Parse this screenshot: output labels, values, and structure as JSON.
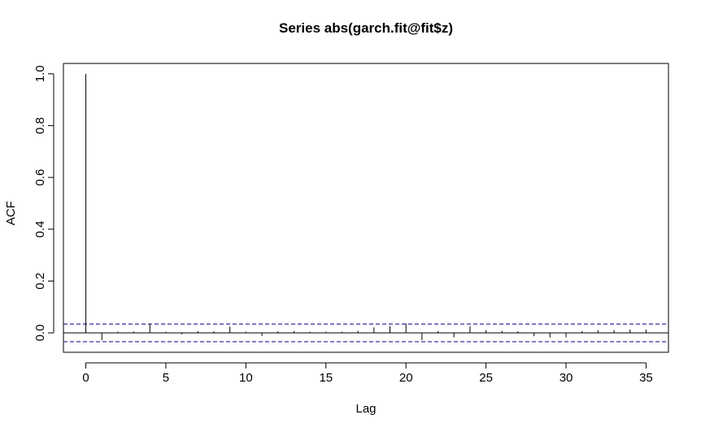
{
  "chart_data": {
    "type": "bar",
    "title": "Series  abs(garch.fit@fit$z)",
    "xlabel": "Lag",
    "ylabel": "ACF",
    "xlim": [
      -1.4,
      36.4
    ],
    "ylim": [
      -0.075,
      1.04
    ],
    "x_ticks": [
      "0",
      "5",
      "10",
      "15",
      "20",
      "25",
      "30",
      "35"
    ],
    "y_ticks": [
      "0.0",
      "0.2",
      "0.4",
      "0.6",
      "0.8",
      "1.0"
    ],
    "confidence_band": 0.034,
    "lags": [
      0,
      1,
      2,
      3,
      4,
      5,
      6,
      7,
      8,
      9,
      10,
      11,
      12,
      13,
      14,
      15,
      16,
      17,
      18,
      19,
      20,
      21,
      22,
      23,
      24,
      25,
      26,
      27,
      28,
      29,
      30,
      31,
      32,
      33,
      34,
      35
    ],
    "acf": [
      1.0,
      -0.028,
      0.005,
      0.005,
      0.034,
      0.004,
      -0.006,
      0.007,
      0.006,
      0.024,
      0.005,
      -0.012,
      0.006,
      0.007,
      0.004,
      0.005,
      0.004,
      0.008,
      0.021,
      0.026,
      0.036,
      -0.028,
      0.007,
      -0.017,
      0.025,
      0.01,
      0.008,
      0.006,
      -0.013,
      -0.018,
      -0.017,
      0.007,
      0.01,
      0.011,
      0.013,
      0.012
    ],
    "band_color": "#00008b",
    "grid": false
  }
}
